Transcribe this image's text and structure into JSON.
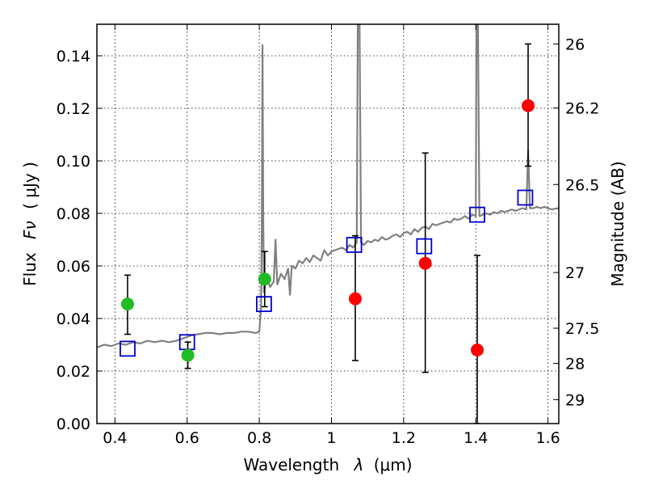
{
  "chart_data": {
    "type": "scatter",
    "title": "",
    "xlabel_text": "Wavelength",
    "xlabel_symbol": "λ",
    "xlabel_unit": "(μm)",
    "ylabel_text": "Flux",
    "ylabel_symbol": "Fν",
    "ylabel_unit": "( μJy )",
    "y2label": "Magnitude (AB)",
    "xlim": [
      0.35,
      1.63
    ],
    "ylim": [
      0.0,
      0.152
    ],
    "grid": true,
    "x_ticks": [
      0.4,
      0.6,
      0.8,
      1.0,
      1.2,
      1.4,
      1.6
    ],
    "x_tick_labels": [
      "0.4",
      "0.6",
      "0.8",
      "1",
      "1.2",
      "1.4",
      "1.6"
    ],
    "y_ticks": [
      0.0,
      0.02,
      0.04,
      0.06,
      0.08,
      0.1,
      0.12,
      0.14
    ],
    "y_tick_labels": [
      "0.00",
      "0.02",
      "0.04",
      "0.06",
      "0.08",
      "0.10",
      "0.12",
      "0.14"
    ],
    "y2_ticks": [
      {
        "label": "26",
        "flux": 0.1445
      },
      {
        "label": "26.2",
        "flux": 0.1201
      },
      {
        "label": "26.5",
        "flux": 0.091
      },
      {
        "label": "27",
        "flux": 0.0575
      },
      {
        "label": "27.5",
        "flux": 0.0363
      },
      {
        "label": "28",
        "flux": 0.0229
      },
      {
        "label": "29",
        "flux": 0.0091
      }
    ],
    "spectrum": {
      "color": "#808080",
      "points": [
        [
          0.35,
          0.029
        ],
        [
          0.37,
          0.03
        ],
        [
          0.39,
          0.0295
        ],
        [
          0.41,
          0.0305
        ],
        [
          0.43,
          0.03
        ],
        [
          0.45,
          0.031
        ],
        [
          0.47,
          0.0305
        ],
        [
          0.49,
          0.0315
        ],
        [
          0.51,
          0.031
        ],
        [
          0.53,
          0.0315
        ],
        [
          0.55,
          0.031
        ],
        [
          0.57,
          0.0315
        ],
        [
          0.59,
          0.0325
        ],
        [
          0.61,
          0.0335
        ],
        [
          0.63,
          0.034
        ],
        [
          0.65,
          0.0345
        ],
        [
          0.67,
          0.0345
        ],
        [
          0.69,
          0.034
        ],
        [
          0.71,
          0.0345
        ],
        [
          0.73,
          0.0345
        ],
        [
          0.75,
          0.035
        ],
        [
          0.77,
          0.035
        ],
        [
          0.79,
          0.0345
        ],
        [
          0.8,
          0.035
        ],
        [
          0.805,
          0.044
        ],
        [
          0.807,
          0.075
        ],
        [
          0.809,
          0.144
        ],
        [
          0.811,
          0.078
        ],
        [
          0.813,
          0.05
        ],
        [
          0.82,
          0.056
        ],
        [
          0.83,
          0.052
        ],
        [
          0.84,
          0.054
        ],
        [
          0.845,
          0.07
        ],
        [
          0.85,
          0.053
        ],
        [
          0.86,
          0.057
        ],
        [
          0.87,
          0.055
        ],
        [
          0.88,
          0.059
        ],
        [
          0.885,
          0.049
        ],
        [
          0.89,
          0.06
        ],
        [
          0.9,
          0.059
        ],
        [
          0.91,
          0.062
        ],
        [
          0.92,
          0.061
        ],
        [
          0.93,
          0.063
        ],
        [
          0.94,
          0.0615
        ],
        [
          0.95,
          0.064
        ],
        [
          0.96,
          0.063
        ],
        [
          0.97,
          0.062
        ],
        [
          0.98,
          0.066
        ],
        [
          0.99,
          0.064
        ],
        [
          1.0,
          0.0655
        ],
        [
          1.01,
          0.066
        ],
        [
          1.02,
          0.0665
        ],
        [
          1.03,
          0.067
        ],
        [
          1.04,
          0.066
        ],
        [
          1.05,
          0.068
        ],
        [
          1.06,
          0.067
        ],
        [
          1.07,
          0.069
        ],
        [
          1.073,
          0.152
        ],
        [
          1.078,
          0.152
        ],
        [
          1.082,
          0.069
        ],
        [
          1.09,
          0.068
        ],
        [
          1.1,
          0.0695
        ],
        [
          1.11,
          0.069
        ],
        [
          1.12,
          0.07
        ],
        [
          1.13,
          0.0695
        ],
        [
          1.14,
          0.071
        ],
        [
          1.15,
          0.07
        ],
        [
          1.16,
          0.0705
        ],
        [
          1.17,
          0.0715
        ],
        [
          1.18,
          0.072
        ],
        [
          1.19,
          0.071
        ],
        [
          1.2,
          0.0725
        ],
        [
          1.21,
          0.073
        ],
        [
          1.22,
          0.072
        ],
        [
          1.23,
          0.074
        ],
        [
          1.24,
          0.073
        ],
        [
          1.25,
          0.0745
        ],
        [
          1.26,
          0.075
        ],
        [
          1.27,
          0.074
        ],
        [
          1.28,
          0.076
        ],
        [
          1.29,
          0.0755
        ],
        [
          1.3,
          0.076
        ],
        [
          1.31,
          0.0765
        ],
        [
          1.32,
          0.077
        ],
        [
          1.33,
          0.0765
        ],
        [
          1.34,
          0.078
        ],
        [
          1.35,
          0.0775
        ],
        [
          1.36,
          0.078
        ],
        [
          1.37,
          0.079
        ],
        [
          1.38,
          0.078
        ],
        [
          1.39,
          0.0795
        ],
        [
          1.4,
          0.079
        ],
        [
          1.402,
          0.152
        ],
        [
          1.406,
          0.152
        ],
        [
          1.41,
          0.079
        ],
        [
          1.42,
          0.0795
        ],
        [
          1.43,
          0.08
        ],
        [
          1.44,
          0.0795
        ],
        [
          1.45,
          0.0805
        ],
        [
          1.46,
          0.08
        ],
        [
          1.47,
          0.081
        ],
        [
          1.48,
          0.0805
        ],
        [
          1.49,
          0.081
        ],
        [
          1.5,
          0.0815
        ],
        [
          1.51,
          0.081
        ],
        [
          1.52,
          0.0815
        ],
        [
          1.53,
          0.082
        ],
        [
          1.54,
          0.0815
        ],
        [
          1.545,
          0.104
        ],
        [
          1.55,
          0.082
        ],
        [
          1.56,
          0.082
        ],
        [
          1.57,
          0.0825
        ],
        [
          1.58,
          0.082
        ],
        [
          1.59,
          0.0825
        ],
        [
          1.6,
          0.082
        ],
        [
          1.61,
          0.0815
        ],
        [
          1.63,
          0.082
        ]
      ]
    },
    "model_points": {
      "color": "#0000cc",
      "points": [
        [
          0.435,
          0.0285
        ],
        [
          0.6,
          0.031
        ],
        [
          0.813,
          0.0455
        ],
        [
          1.063,
          0.068
        ],
        [
          1.257,
          0.0675
        ],
        [
          1.404,
          0.0795
        ],
        [
          1.537,
          0.086
        ]
      ]
    },
    "green_points": {
      "color": "#22bb22",
      "points": [
        {
          "x": 0.435,
          "y": 0.0455,
          "lo": 0.034,
          "hi": 0.0565
        },
        {
          "x": 0.602,
          "y": 0.026,
          "lo": 0.021,
          "hi": 0.031
        },
        {
          "x": 0.815,
          "y": 0.055,
          "lo": 0.0445,
          "hi": 0.0655
        }
      ]
    },
    "red_points": {
      "color": "#ff0000",
      "points": [
        {
          "x": 1.066,
          "y": 0.0475,
          "lo": 0.024,
          "hi": 0.0715
        },
        {
          "x": 1.26,
          "y": 0.061,
          "lo": 0.0195,
          "hi": 0.103
        },
        {
          "x": 1.404,
          "y": 0.028,
          "lo": 0.0,
          "hi": 0.064
        },
        {
          "x": 1.545,
          "y": 0.121,
          "lo": 0.098,
          "hi": 0.1445
        }
      ]
    }
  }
}
